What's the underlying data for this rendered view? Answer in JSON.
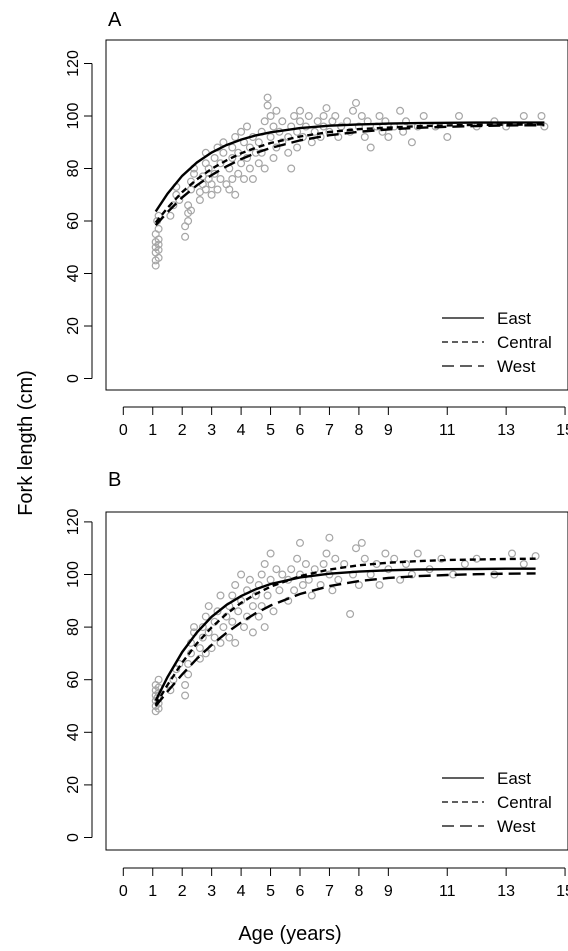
{
  "ylabel": "Fork length (cm)",
  "xlabel": "Age (years)",
  "chart_data": [
    {
      "panel": "A",
      "type": "scatter",
      "xlim": [
        0,
        15
      ],
      "ylim": [
        0,
        120
      ],
      "x_ticks": [
        0,
        1,
        2,
        3,
        4,
        5,
        6,
        7,
        8,
        9,
        11,
        13,
        15
      ],
      "y_ticks": [
        0,
        20,
        40,
        60,
        80,
        100,
        120
      ],
      "x_range": [
        1.1,
        14.3
      ],
      "legend": {
        "position": "bottom-right",
        "entries": [
          "East",
          "Central",
          "West"
        ]
      },
      "grid": false,
      "series": [
        {
          "name": "East",
          "style": "solid",
          "x": [
            1.1,
            1.5,
            2,
            2.5,
            3,
            3.5,
            4,
            4.5,
            5,
            6,
            7,
            8,
            9,
            10,
            11,
            12,
            13,
            14.3
          ],
          "y": [
            63.6,
            70.4,
            77.2,
            82.3,
            86.1,
            88.9,
            91.0,
            92.6,
            93.8,
            95.4,
            96.3,
            96.8,
            97.1,
            97.3,
            97.4,
            97.5,
            97.5,
            97.5
          ]
        },
        {
          "name": "Central",
          "style": "short-dash",
          "x": [
            1.1,
            1.5,
            2,
            2.5,
            3,
            3.5,
            4,
            4.5,
            5,
            6,
            7,
            8,
            9,
            10,
            11,
            12,
            13,
            14.3
          ],
          "y": [
            59.4,
            65.0,
            71.0,
            75.9,
            79.9,
            83.1,
            85.8,
            87.9,
            89.7,
            92.2,
            93.9,
            95.0,
            95.6,
            96.1,
            96.4,
            96.6,
            96.7,
            96.8
          ]
        },
        {
          "name": "West",
          "style": "long-dash",
          "x": [
            1.1,
            1.5,
            2,
            2.5,
            3,
            3.5,
            4,
            4.5,
            5,
            6,
            7,
            8,
            9,
            10,
            11,
            12,
            13,
            14.3
          ],
          "y": [
            58.4,
            63.4,
            69.0,
            73.6,
            77.5,
            80.8,
            83.6,
            85.9,
            87.8,
            90.7,
            92.7,
            94.0,
            94.9,
            95.5,
            95.9,
            96.2,
            96.4,
            96.5
          ]
        }
      ]
    },
    {
      "panel": "B",
      "type": "scatter",
      "xlim": [
        0,
        15
      ],
      "ylim": [
        0,
        120
      ],
      "x_ticks": [
        0,
        1,
        2,
        3,
        4,
        5,
        6,
        7,
        8,
        9,
        11,
        13,
        15
      ],
      "y_ticks": [
        0,
        20,
        40,
        60,
        80,
        100,
        120
      ],
      "x_range": [
        1.1,
        14.0
      ],
      "legend": {
        "position": "bottom-right",
        "entries": [
          "East",
          "Central",
          "West"
        ]
      },
      "grid": false,
      "series": [
        {
          "name": "East",
          "style": "solid",
          "x": [
            1.1,
            1.5,
            2,
            2.5,
            3,
            3.5,
            4,
            4.5,
            5,
            6,
            7,
            8,
            9,
            10,
            11,
            12,
            13,
            14
          ],
          "y": [
            52.0,
            61.0,
            70.5,
            78.0,
            83.9,
            88.4,
            91.8,
            94.4,
            96.4,
            98.9,
            100.3,
            101.1,
            101.6,
            101.9,
            102.0,
            102.1,
            102.2,
            102.2
          ]
        },
        {
          "name": "Central",
          "style": "short-dash",
          "x": [
            1.1,
            1.5,
            2,
            2.5,
            3,
            3.5,
            4,
            4.5,
            5,
            6,
            7,
            8,
            9,
            10,
            11,
            12,
            13,
            14
          ],
          "y": [
            50.5,
            58.0,
            66.5,
            73.8,
            79.9,
            85.0,
            89.2,
            92.6,
            95.4,
            99.4,
            101.9,
            103.5,
            104.5,
            105.1,
            105.5,
            105.7,
            105.9,
            106.0
          ]
        },
        {
          "name": "West",
          "style": "long-dash",
          "x": [
            1.1,
            1.5,
            2,
            2.5,
            3,
            3.5,
            4,
            4.5,
            5,
            6,
            7,
            8,
            9,
            10,
            11,
            12,
            13,
            14
          ],
          "y": [
            50.0,
            55.5,
            62.0,
            68.0,
            73.2,
            77.8,
            81.8,
            85.3,
            88.2,
            92.6,
            95.6,
            97.5,
            98.7,
            99.4,
            99.8,
            100.1,
            100.3,
            100.4
          ]
        }
      ],
      "points_note": ""
    }
  ],
  "scatter_points": {
    "A": [
      [
        1.1,
        43
      ],
      [
        1.1,
        45
      ],
      [
        1.1,
        48
      ],
      [
        1.1,
        50
      ],
      [
        1.1,
        52
      ],
      [
        1.1,
        55
      ],
      [
        1.2,
        46
      ],
      [
        1.2,
        49
      ],
      [
        1.2,
        51
      ],
      [
        1.2,
        53
      ],
      [
        1.2,
        57
      ],
      [
        1.15,
        60
      ],
      [
        1.2,
        62
      ],
      [
        1.6,
        62
      ],
      [
        1.7,
        66
      ],
      [
        1.8,
        70
      ],
      [
        1.8,
        73
      ],
      [
        1.9,
        68
      ],
      [
        2.1,
        54
      ],
      [
        2.1,
        58
      ],
      [
        2.2,
        60
      ],
      [
        2.2,
        63
      ],
      [
        2.2,
        66
      ],
      [
        2.3,
        64
      ],
      [
        2.3,
        72
      ],
      [
        2.3,
        75
      ],
      [
        2.4,
        78
      ],
      [
        2.4,
        80
      ],
      [
        2.6,
        68
      ],
      [
        2.6,
        71
      ],
      [
        2.7,
        74
      ],
      [
        2.7,
        77
      ],
      [
        2.8,
        72
      ],
      [
        2.8,
        82
      ],
      [
        2.8,
        86
      ],
      [
        2.9,
        76
      ],
      [
        2.9,
        80
      ],
      [
        3.0,
        70
      ],
      [
        3.0,
        74
      ],
      [
        3.1,
        78
      ],
      [
        3.1,
        84
      ],
      [
        3.2,
        72
      ],
      [
        3.2,
        88
      ],
      [
        3.3,
        76
      ],
      [
        3.3,
        82
      ],
      [
        3.4,
        86
      ],
      [
        3.4,
        90
      ],
      [
        3.5,
        74
      ],
      [
        3.6,
        72
      ],
      [
        3.6,
        80
      ],
      [
        3.7,
        76
      ],
      [
        3.7,
        84
      ],
      [
        3.7,
        88
      ],
      [
        3.8,
        92
      ],
      [
        3.8,
        70
      ],
      [
        3.9,
        78
      ],
      [
        3.9,
        86
      ],
      [
        4.0,
        94
      ],
      [
        4.0,
        82
      ],
      [
        4.1,
        76
      ],
      [
        4.1,
        90
      ],
      [
        4.2,
        84
      ],
      [
        4.2,
        96
      ],
      [
        4.3,
        80
      ],
      [
        4.3,
        88
      ],
      [
        4.4,
        92
      ],
      [
        4.4,
        76
      ],
      [
        4.5,
        86
      ],
      [
        4.6,
        82
      ],
      [
        4.6,
        90
      ],
      [
        4.7,
        94
      ],
      [
        4.7,
        86
      ],
      [
        4.8,
        98
      ],
      [
        4.8,
        80
      ],
      [
        4.9,
        104
      ],
      [
        4.9,
        107
      ],
      [
        5.0,
        92
      ],
      [
        5.0,
        100
      ],
      [
        5.1,
        84
      ],
      [
        5.1,
        96
      ],
      [
        5.2,
        88
      ],
      [
        5.2,
        102
      ],
      [
        5.3,
        94
      ],
      [
        5.4,
        90
      ],
      [
        5.4,
        98
      ],
      [
        5.6,
        86
      ],
      [
        5.6,
        92
      ],
      [
        5.7,
        96
      ],
      [
        5.7,
        80
      ],
      [
        5.8,
        100
      ],
      [
        5.9,
        94
      ],
      [
        5.9,
        88
      ],
      [
        6.0,
        98
      ],
      [
        6.0,
        102
      ],
      [
        6.1,
        92
      ],
      [
        6.2,
        96
      ],
      [
        6.3,
        100
      ],
      [
        6.4,
        90
      ],
      [
        6.5,
        94
      ],
      [
        6.6,
        98
      ],
      [
        6.7,
        92
      ],
      [
        6.8,
        96
      ],
      [
        6.8,
        100
      ],
      [
        6.9,
        103
      ],
      [
        7.0,
        94
      ],
      [
        7.1,
        98
      ],
      [
        7.2,
        100
      ],
      [
        7.3,
        92
      ],
      [
        7.4,
        96
      ],
      [
        7.6,
        98
      ],
      [
        7.7,
        94
      ],
      [
        7.8,
        102
      ],
      [
        7.9,
        105
      ],
      [
        8.0,
        96
      ],
      [
        8.1,
        100
      ],
      [
        8.2,
        92
      ],
      [
        8.3,
        98
      ],
      [
        8.4,
        88
      ],
      [
        8.6,
        96
      ],
      [
        8.7,
        100
      ],
      [
        8.8,
        94
      ],
      [
        8.9,
        98
      ],
      [
        9.0,
        92
      ],
      [
        9.2,
        96
      ],
      [
        9.4,
        102
      ],
      [
        9.5,
        94
      ],
      [
        9.6,
        98
      ],
      [
        9.8,
        90
      ],
      [
        10.0,
        96
      ],
      [
        10.2,
        100
      ],
      [
        10.6,
        96
      ],
      [
        11.0,
        92
      ],
      [
        11.4,
        100
      ],
      [
        12.0,
        96
      ],
      [
        12.6,
        98
      ],
      [
        13.0,
        96
      ],
      [
        13.6,
        100
      ],
      [
        14.3,
        96
      ],
      [
        14.2,
        100
      ]
    ],
    "B": [
      [
        1.1,
        48
      ],
      [
        1.1,
        50
      ],
      [
        1.1,
        52
      ],
      [
        1.1,
        54
      ],
      [
        1.1,
        56
      ],
      [
        1.1,
        58
      ],
      [
        1.2,
        49
      ],
      [
        1.2,
        51
      ],
      [
        1.2,
        55
      ],
      [
        1.2,
        57
      ],
      [
        1.2,
        60
      ],
      [
        1.15,
        53
      ],
      [
        1.6,
        56
      ],
      [
        1.7,
        60
      ],
      [
        1.8,
        64
      ],
      [
        1.9,
        66
      ],
      [
        2.1,
        54
      ],
      [
        2.1,
        58
      ],
      [
        2.2,
        62
      ],
      [
        2.2,
        66
      ],
      [
        2.3,
        70
      ],
      [
        2.3,
        74
      ],
      [
        2.4,
        78
      ],
      [
        2.4,
        80
      ],
      [
        2.6,
        68
      ],
      [
        2.6,
        72
      ],
      [
        2.7,
        76
      ],
      [
        2.7,
        80
      ],
      [
        2.8,
        70
      ],
      [
        2.8,
        84
      ],
      [
        2.9,
        78
      ],
      [
        2.9,
        88
      ],
      [
        3.0,
        72
      ],
      [
        3.1,
        76
      ],
      [
        3.1,
        82
      ],
      [
        3.2,
        86
      ],
      [
        3.3,
        92
      ],
      [
        3.3,
        74
      ],
      [
        3.4,
        80
      ],
      [
        3.5,
        84
      ],
      [
        3.6,
        76
      ],
      [
        3.6,
        88
      ],
      [
        3.7,
        92
      ],
      [
        3.7,
        82
      ],
      [
        3.8,
        96
      ],
      [
        3.8,
        74
      ],
      [
        3.9,
        86
      ],
      [
        4.0,
        90
      ],
      [
        4.0,
        100
      ],
      [
        4.1,
        80
      ],
      [
        4.2,
        94
      ],
      [
        4.2,
        84
      ],
      [
        4.3,
        98
      ],
      [
        4.4,
        78
      ],
      [
        4.4,
        88
      ],
      [
        4.5,
        92
      ],
      [
        4.6,
        84
      ],
      [
        4.6,
        96
      ],
      [
        4.7,
        100
      ],
      [
        4.7,
        88
      ],
      [
        4.8,
        104
      ],
      [
        4.8,
        80
      ],
      [
        4.9,
        92
      ],
      [
        5.0,
        108
      ],
      [
        5.0,
        98
      ],
      [
        5.1,
        86
      ],
      [
        5.2,
        102
      ],
      [
        5.3,
        94
      ],
      [
        5.4,
        100
      ],
      [
        5.6,
        90
      ],
      [
        5.6,
        98
      ],
      [
        5.7,
        102
      ],
      [
        5.8,
        94
      ],
      [
        5.9,
        106
      ],
      [
        6.0,
        100
      ],
      [
        6.0,
        112
      ],
      [
        6.1,
        96
      ],
      [
        6.2,
        104
      ],
      [
        6.3,
        98
      ],
      [
        6.4,
        92
      ],
      [
        6.5,
        102
      ],
      [
        6.7,
        96
      ],
      [
        6.8,
        104
      ],
      [
        6.9,
        108
      ],
      [
        7.0,
        114
      ],
      [
        7.0,
        100
      ],
      [
        7.1,
        94
      ],
      [
        7.2,
        106
      ],
      [
        7.3,
        98
      ],
      [
        7.5,
        104
      ],
      [
        7.7,
        85
      ],
      [
        7.8,
        100
      ],
      [
        7.9,
        110
      ],
      [
        8.0,
        96
      ],
      [
        8.1,
        112
      ],
      [
        8.2,
        106
      ],
      [
        8.4,
        100
      ],
      [
        8.6,
        104
      ],
      [
        8.7,
        96
      ],
      [
        8.9,
        108
      ],
      [
        9.0,
        102
      ],
      [
        9.2,
        106
      ],
      [
        9.4,
        98
      ],
      [
        9.6,
        104
      ],
      [
        9.8,
        100
      ],
      [
        10.0,
        108
      ],
      [
        10.4,
        102
      ],
      [
        10.8,
        106
      ],
      [
        11.2,
        100
      ],
      [
        11.6,
        104
      ],
      [
        12.0,
        106
      ],
      [
        12.6,
        100
      ],
      [
        13.2,
        108
      ],
      [
        13.6,
        104
      ],
      [
        14.0,
        107
      ]
    ]
  }
}
